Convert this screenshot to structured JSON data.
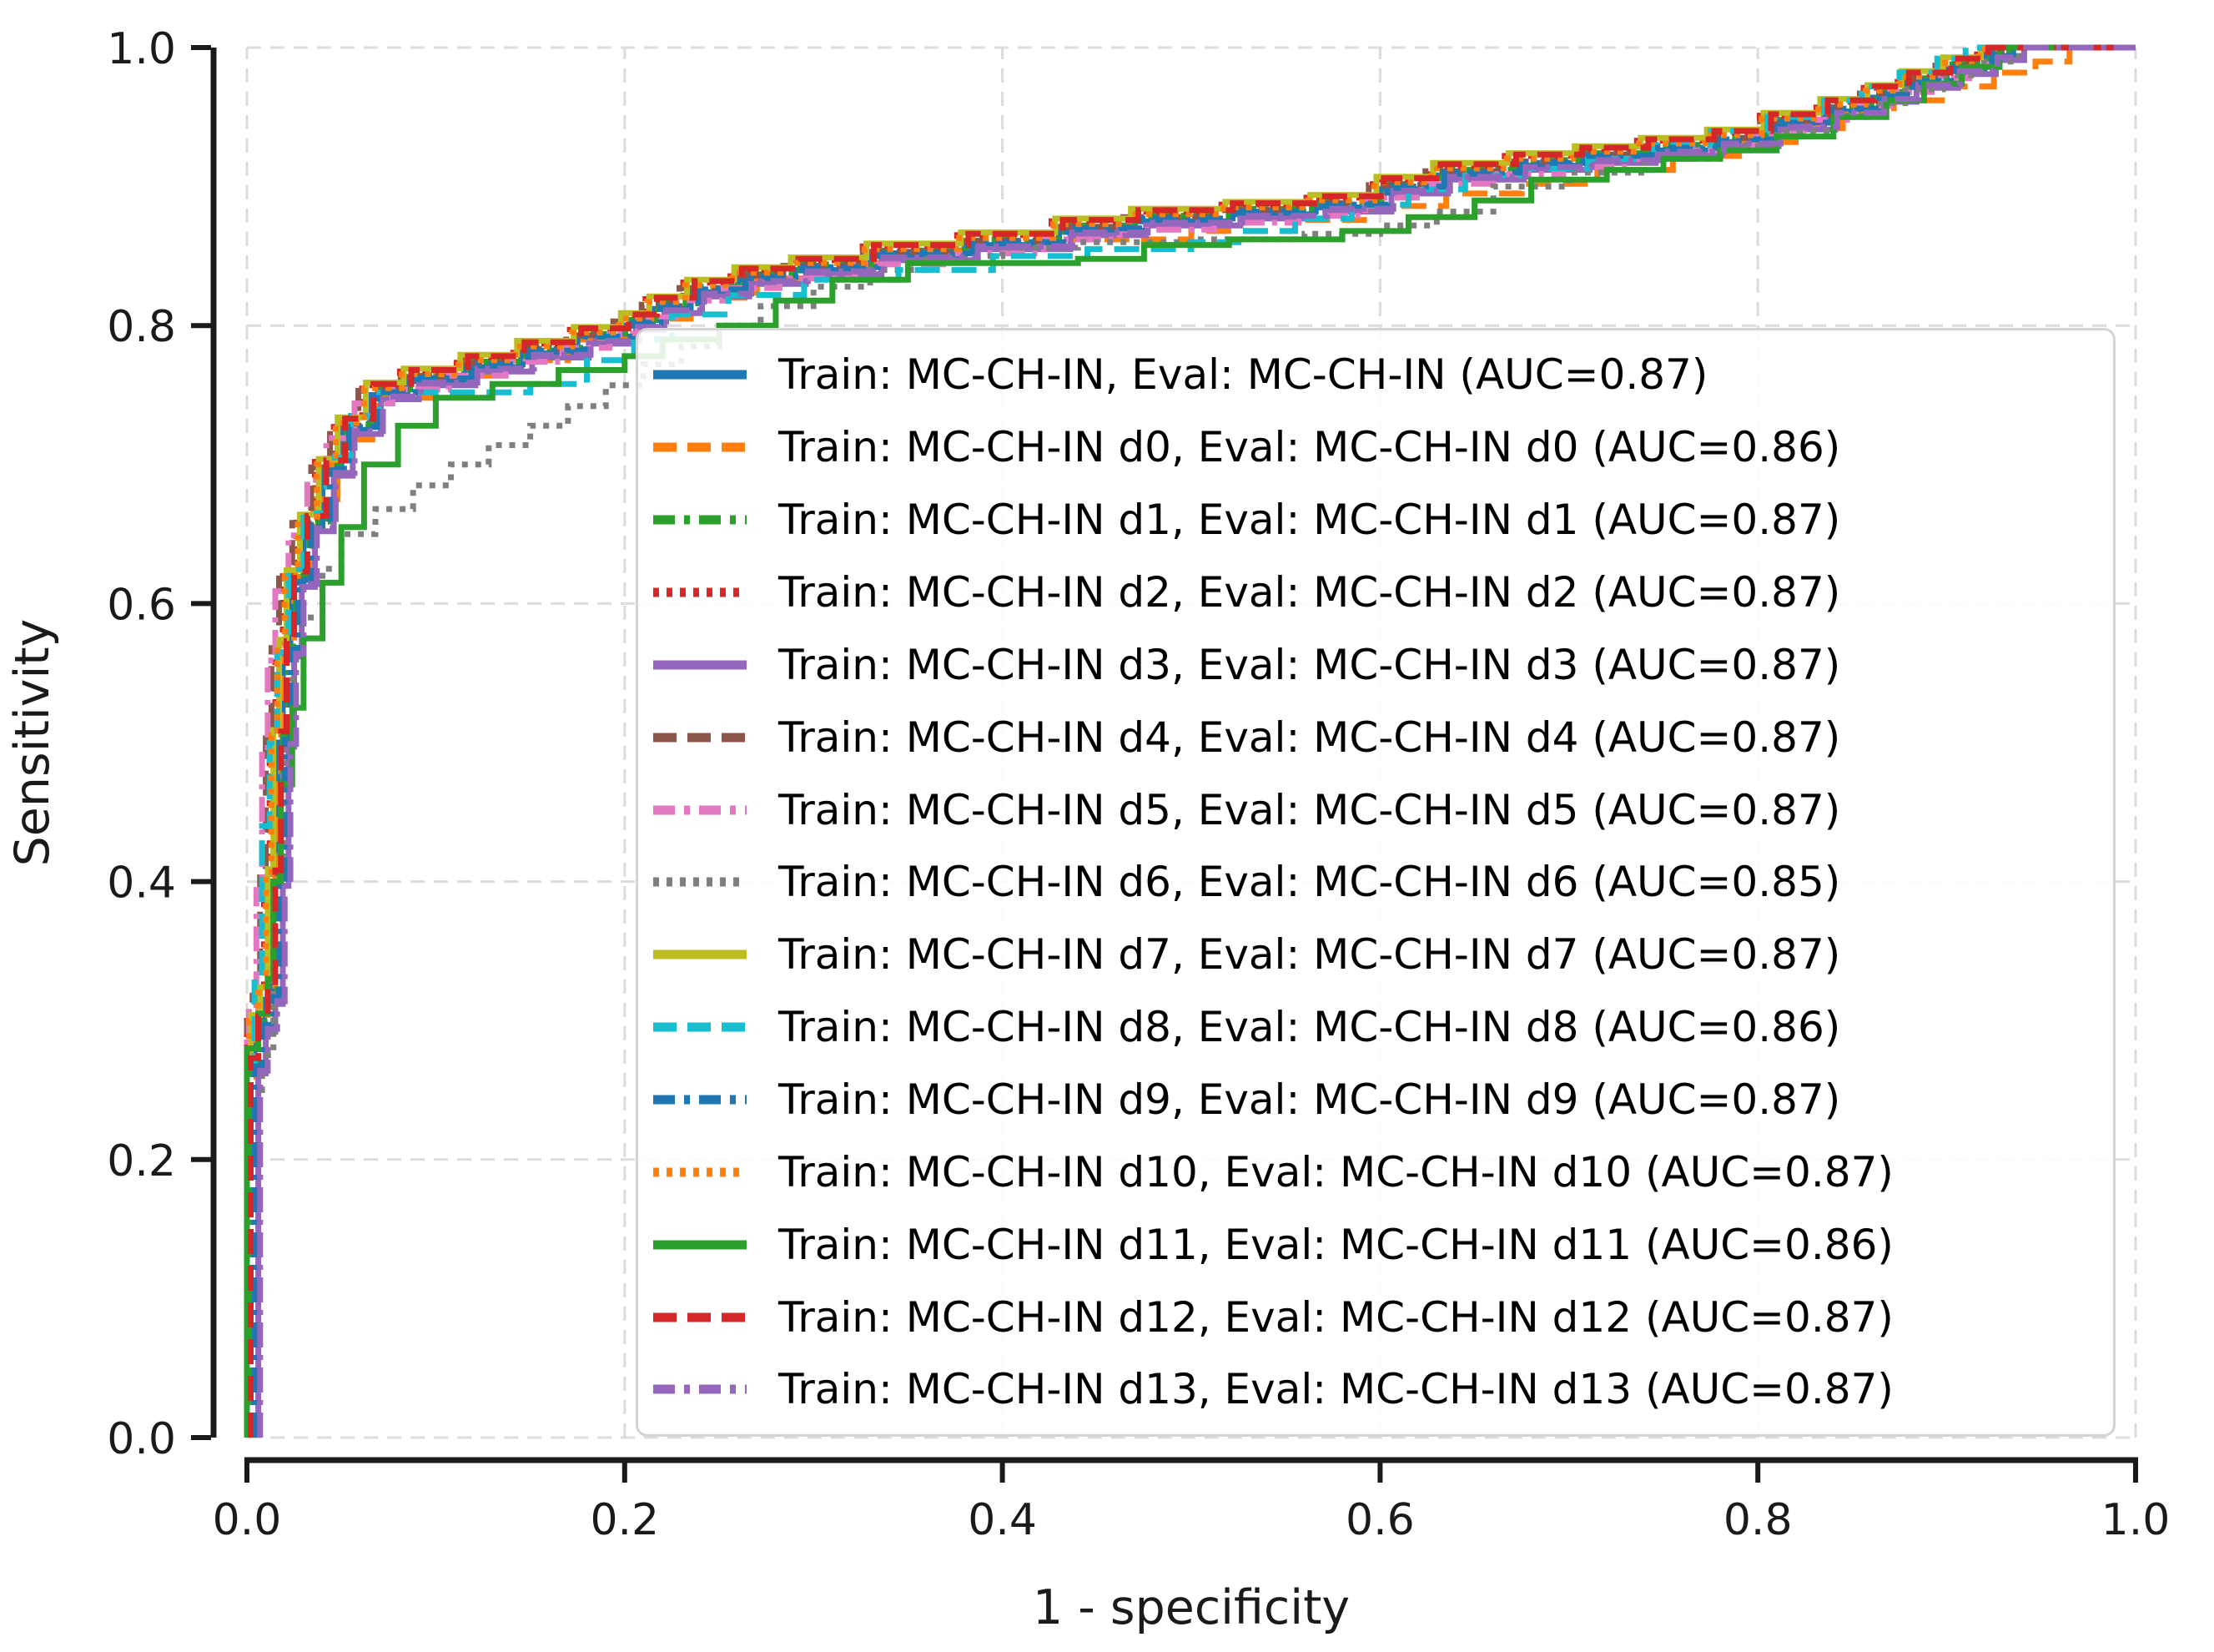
{
  "figure": {
    "background": "#ffffff",
    "text_color": "#1a1a1a",
    "grid_color": "#dcdcdc",
    "spine_color": "#1a1a1a",
    "legend_border_color": "#d4d4d4"
  },
  "chart_data": {
    "type": "line",
    "subtype": "roc-step-curves",
    "title": "",
    "xlabel": "1 - specificity",
    "ylabel": "Sensitivity",
    "xlim": [
      0,
      1
    ],
    "ylim": [
      0,
      1
    ],
    "xticks": [
      "0.0",
      "0.2",
      "0.4",
      "0.6",
      "0.8",
      "1.0"
    ],
    "yticks": [
      "0.0",
      "0.2",
      "0.4",
      "0.6",
      "0.8",
      "1.0"
    ],
    "grid": {
      "visible": true,
      "style": "dashed",
      "color": "#dcdcdc"
    },
    "legend": {
      "position": "lower right",
      "frame": true
    },
    "base_points": [
      [
        0,
        0
      ],
      [
        0,
        0.265
      ],
      [
        0.004,
        0.295
      ],
      [
        0.009,
        0.315
      ],
      [
        0.013,
        0.4
      ],
      [
        0.016,
        0.5
      ],
      [
        0.019,
        0.565
      ],
      [
        0.023,
        0.615
      ],
      [
        0.03,
        0.655
      ],
      [
        0.04,
        0.695
      ],
      [
        0.05,
        0.725
      ],
      [
        0.065,
        0.75
      ],
      [
        0.085,
        0.76
      ],
      [
        0.115,
        0.77
      ],
      [
        0.145,
        0.78
      ],
      [
        0.175,
        0.79
      ],
      [
        0.2,
        0.8
      ],
      [
        0.215,
        0.812
      ],
      [
        0.235,
        0.824
      ],
      [
        0.26,
        0.833
      ],
      [
        0.29,
        0.84
      ],
      [
        0.33,
        0.85
      ],
      [
        0.38,
        0.858
      ],
      [
        0.43,
        0.868
      ],
      [
        0.47,
        0.875
      ],
      [
        0.52,
        0.88
      ],
      [
        0.565,
        0.885
      ],
      [
        0.6,
        0.898
      ],
      [
        0.63,
        0.908
      ],
      [
        0.67,
        0.915
      ],
      [
        0.705,
        0.92
      ],
      [
        0.74,
        0.926
      ],
      [
        0.775,
        0.932
      ],
      [
        0.805,
        0.944
      ],
      [
        0.835,
        0.954
      ],
      [
        0.86,
        0.964
      ],
      [
        0.878,
        0.974
      ],
      [
        0.9,
        0.984
      ],
      [
        0.92,
        0.994
      ],
      [
        0.935,
        1.0
      ],
      [
        1,
        1
      ]
    ],
    "series": [
      {
        "id": "MC-CH-IN",
        "label": "Train: MC-CH-IN, Eval: MC-CH-IN (AUC=0.87)",
        "auc": 0.87,
        "color": "#1f77b4",
        "linestyle": "solid",
        "points": "base"
      },
      {
        "id": "d0",
        "label": "Train: MC-CH-IN d0, Eval: MC-CH-IN d0 (AUC=0.86)",
        "auc": 0.86,
        "color": "#ff7f0e",
        "linestyle": "dashed",
        "points": [
          [
            0,
            0
          ],
          [
            0,
            0.255
          ],
          [
            0.005,
            0.29
          ],
          [
            0.011,
            0.32
          ],
          [
            0.015,
            0.47
          ],
          [
            0.018,
            0.56
          ],
          [
            0.025,
            0.625
          ],
          [
            0.035,
            0.675
          ],
          [
            0.048,
            0.718
          ],
          [
            0.068,
            0.748
          ],
          [
            0.1,
            0.764
          ],
          [
            0.13,
            0.775
          ],
          [
            0.17,
            0.79
          ],
          [
            0.205,
            0.805
          ],
          [
            0.235,
            0.82
          ],
          [
            0.27,
            0.834
          ],
          [
            0.31,
            0.845
          ],
          [
            0.36,
            0.855
          ],
          [
            0.42,
            0.862
          ],
          [
            0.5,
            0.868
          ],
          [
            0.555,
            0.876
          ],
          [
            0.595,
            0.886
          ],
          [
            0.635,
            0.895
          ],
          [
            0.675,
            0.902
          ],
          [
            0.715,
            0.912
          ],
          [
            0.755,
            0.922
          ],
          [
            0.79,
            0.932
          ],
          [
            0.82,
            0.942
          ],
          [
            0.845,
            0.952
          ],
          [
            0.872,
            0.962
          ],
          [
            0.9,
            0.972
          ],
          [
            0.925,
            0.982
          ],
          [
            0.947,
            0.99
          ],
          [
            0.965,
            1.0
          ],
          [
            1,
            1
          ]
        ]
      },
      {
        "id": "d1",
        "label": "Train: MC-CH-IN d1, Eval: MC-CH-IN d1 (AUC=0.87)",
        "auc": 0.87,
        "color": "#2ca02c",
        "linestyle": "dashdot",
        "points": "base",
        "dx": 0.003,
        "dy": 0.004
      },
      {
        "id": "d2",
        "label": "Train: MC-CH-IN d2, Eval: MC-CH-IN d2 (AUC=0.87)",
        "auc": 0.87,
        "color": "#d62728",
        "linestyle": "dotted",
        "points": "base",
        "dx": -0.004,
        "dy": 0.007
      },
      {
        "id": "d3",
        "label": "Train: MC-CH-IN d3, Eval: MC-CH-IN d3 (AUC=0.87)",
        "auc": 0.87,
        "color": "#9467bd",
        "linestyle": "solid",
        "points": "base",
        "dx": 0.006,
        "dy": -0.003
      },
      {
        "id": "d4",
        "label": "Train: MC-CH-IN d4, Eval: MC-CH-IN d4 (AUC=0.87)",
        "auc": 0.87,
        "color": "#8c564b",
        "linestyle": "dashed",
        "points": "base",
        "dx": -0.006,
        "dy": 0.003
      },
      {
        "id": "d5",
        "label": "Train: MC-CH-IN d5, Eval: MC-CH-IN d5 (AUC=0.87)",
        "auc": 0.87,
        "color": "#e377c2",
        "linestyle": "dashdot",
        "points": "base",
        "dx": -0.008,
        "dy": -0.006
      },
      {
        "id": "d6",
        "label": "Train: MC-CH-IN d6, Eval: MC-CH-IN d6 (AUC=0.85)",
        "auc": 0.85,
        "color": "#7f7f7f",
        "linestyle": "dotted",
        "points": [
          [
            0,
            0
          ],
          [
            0,
            0.25
          ],
          [
            0.008,
            0.275
          ],
          [
            0.014,
            0.42
          ],
          [
            0.019,
            0.5
          ],
          [
            0.024,
            0.545
          ],
          [
            0.03,
            0.59
          ],
          [
            0.04,
            0.625
          ],
          [
            0.05,
            0.65
          ],
          [
            0.068,
            0.668
          ],
          [
            0.088,
            0.685
          ],
          [
            0.108,
            0.7
          ],
          [
            0.128,
            0.714
          ],
          [
            0.15,
            0.728
          ],
          [
            0.17,
            0.742
          ],
          [
            0.19,
            0.757
          ],
          [
            0.21,
            0.772
          ],
          [
            0.23,
            0.785
          ],
          [
            0.25,
            0.8
          ],
          [
            0.272,
            0.814
          ],
          [
            0.3,
            0.828
          ],
          [
            0.33,
            0.84
          ],
          [
            0.36,
            0.85
          ],
          [
            0.4,
            0.856
          ],
          [
            0.44,
            0.86
          ],
          [
            0.5,
            0.862
          ],
          [
            0.56,
            0.866
          ],
          [
            0.6,
            0.872
          ],
          [
            0.63,
            0.882
          ],
          [
            0.66,
            0.9
          ],
          [
            0.7,
            0.91
          ],
          [
            0.74,
            0.92
          ],
          [
            0.78,
            0.93
          ],
          [
            0.81,
            0.94
          ],
          [
            0.838,
            0.95
          ],
          [
            0.858,
            0.96
          ],
          [
            0.878,
            0.97
          ],
          [
            0.898,
            0.98
          ],
          [
            0.918,
            0.99
          ],
          [
            0.938,
            1.0
          ],
          [
            1,
            1
          ]
        ]
      },
      {
        "id": "d7",
        "label": "Train: MC-CH-IN d7, Eval: MC-CH-IN d7 (AUC=0.87)",
        "auc": 0.87,
        "color": "#bcbd22",
        "linestyle": "solid",
        "points": "base",
        "dx": -0.002,
        "dy": 0.009
      },
      {
        "id": "d8",
        "label": "Train: MC-CH-IN d8, Eval: MC-CH-IN d8 (AUC=0.86)",
        "auc": 0.86,
        "color": "#17becf",
        "linestyle": "dashed",
        "points": [
          [
            0,
            0
          ],
          [
            0,
            0.27
          ],
          [
            0.004,
            0.33
          ],
          [
            0.008,
            0.44
          ],
          [
            0.012,
            0.5
          ],
          [
            0.016,
            0.565
          ],
          [
            0.022,
            0.625
          ],
          [
            0.03,
            0.665
          ],
          [
            0.042,
            0.705
          ],
          [
            0.055,
            0.735
          ],
          [
            0.07,
            0.752
          ],
          [
            0.15,
            0.758
          ],
          [
            0.18,
            0.775
          ],
          [
            0.205,
            0.79
          ],
          [
            0.225,
            0.808
          ],
          [
            0.255,
            0.822
          ],
          [
            0.295,
            0.833
          ],
          [
            0.345,
            0.84
          ],
          [
            0.395,
            0.85
          ],
          [
            0.445,
            0.855
          ],
          [
            0.5,
            0.86
          ],
          [
            0.525,
            0.868
          ],
          [
            0.555,
            0.877
          ],
          [
            0.585,
            0.887
          ],
          [
            0.615,
            0.898
          ],
          [
            0.645,
            0.908
          ],
          [
            0.675,
            0.913
          ],
          [
            0.71,
            0.92
          ],
          [
            0.745,
            0.93
          ],
          [
            0.775,
            0.94
          ],
          [
            0.805,
            0.95
          ],
          [
            0.835,
            0.962
          ],
          [
            0.855,
            0.972
          ],
          [
            0.875,
            0.982
          ],
          [
            0.895,
            0.992
          ],
          [
            0.91,
            1.0
          ],
          [
            1,
            1
          ]
        ]
      },
      {
        "id": "d9",
        "label": "Train: MC-CH-IN d9, Eval: MC-CH-IN d9 (AUC=0.87)",
        "auc": 0.87,
        "color": "#1f77b4",
        "linestyle": "dashdot",
        "points": "base",
        "dx": 0.004,
        "dy": 0.002
      },
      {
        "id": "d10",
        "label": "Train: MC-CH-IN d10, Eval: MC-CH-IN d10 (AUC=0.87)",
        "auc": 0.87,
        "color": "#ff7f0e",
        "linestyle": "dotted",
        "points": "base",
        "dx": -0.003,
        "dy": 0.005
      },
      {
        "id": "d11",
        "label": "Train: MC-CH-IN d11, Eval: MC-CH-IN d11 (AUC=0.86)",
        "auc": 0.86,
        "color": "#2ca02c",
        "linestyle": "solid",
        "points": [
          [
            0,
            0
          ],
          [
            0,
            0.28
          ],
          [
            0.006,
            0.305
          ],
          [
            0.011,
            0.33
          ],
          [
            0.014,
            0.4
          ],
          [
            0.018,
            0.47
          ],
          [
            0.024,
            0.525
          ],
          [
            0.03,
            0.575
          ],
          [
            0.04,
            0.615
          ],
          [
            0.05,
            0.655
          ],
          [
            0.062,
            0.7
          ],
          [
            0.08,
            0.728
          ],
          [
            0.1,
            0.748
          ],
          [
            0.13,
            0.758
          ],
          [
            0.165,
            0.768
          ],
          [
            0.2,
            0.778
          ],
          [
            0.22,
            0.79
          ],
          [
            0.25,
            0.8
          ],
          [
            0.28,
            0.818
          ],
          [
            0.31,
            0.833
          ],
          [
            0.35,
            0.845
          ],
          [
            0.44,
            0.848
          ],
          [
            0.475,
            0.858
          ],
          [
            0.52,
            0.862
          ],
          [
            0.58,
            0.868
          ],
          [
            0.615,
            0.878
          ],
          [
            0.65,
            0.89
          ],
          [
            0.68,
            0.905
          ],
          [
            0.72,
            0.912
          ],
          [
            0.75,
            0.92
          ],
          [
            0.78,
            0.926
          ],
          [
            0.81,
            0.936
          ],
          [
            0.84,
            0.95
          ],
          [
            0.868,
            0.962
          ],
          [
            0.888,
            0.974
          ],
          [
            0.908,
            0.986
          ],
          [
            0.928,
            1.0
          ],
          [
            1,
            1
          ]
        ]
      },
      {
        "id": "d12",
        "label": "Train: MC-CH-IN d12, Eval: MC-CH-IN d12 (AUC=0.87)",
        "auc": 0.87,
        "color": "#d62728",
        "linestyle": "dashed",
        "points": "base",
        "dx": 0.002,
        "dy": 0.008
      },
      {
        "id": "d13",
        "label": "Train: MC-CH-IN d13, Eval: MC-CH-IN d13 (AUC=0.87)",
        "auc": 0.87,
        "color": "#9467bd",
        "linestyle": "dashdot",
        "points": "base",
        "dx": 0.007,
        "dy": -0.001
      }
    ]
  }
}
